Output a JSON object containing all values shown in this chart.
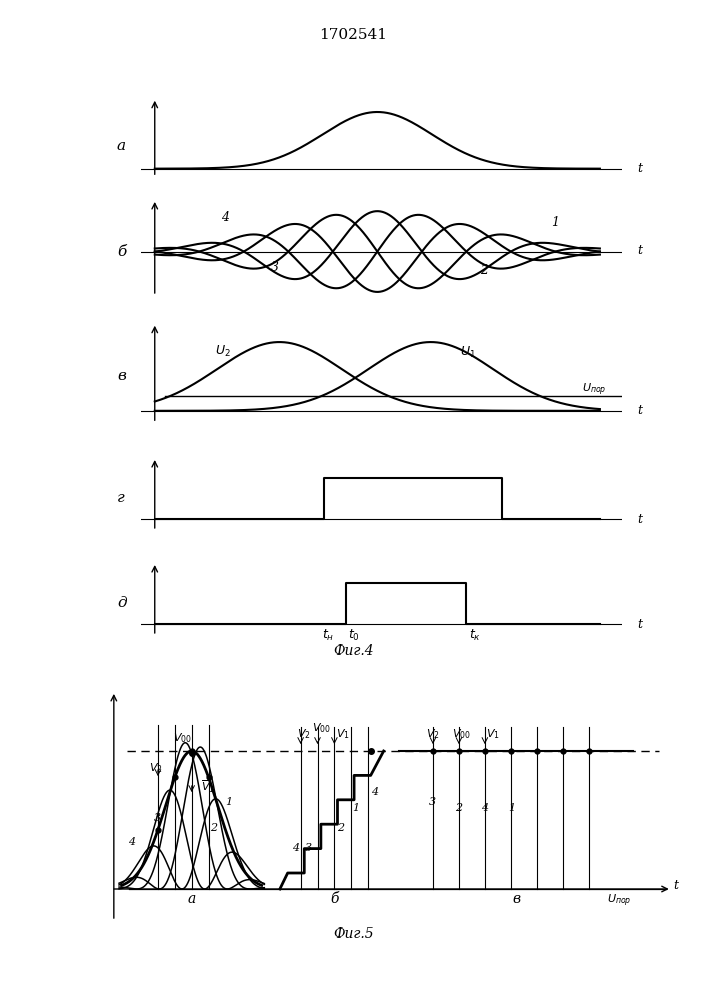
{
  "title": "1702541",
  "fig4_caption": "Фиг.4",
  "fig5_caption": "Фиг.5",
  "bg_color": "#ffffff",
  "line_color": "#000000",
  "panel_labels_fig4": [
    "а",
    "б",
    "в",
    "г",
    "д"
  ],
  "label_t": "t",
  "label_U2": "$U_2$",
  "label_U1": "$U_1$",
  "label_Upor": "$U_{пор}$",
  "label_tn": "$t_{н}$",
  "label_t0": "$t_0$",
  "label_tk": "$t_{к}$",
  "label_Voo_fig5": "$V_{00}$",
  "label_V2_fig5": "$V_2$",
  "label_V1_fig5": "$V_1$",
  "label_Upor_fig5": "$U_{пор}$",
  "fig5_xregion_labels": [
    "а",
    "б",
    "в"
  ],
  "fig5_label_t": "t"
}
